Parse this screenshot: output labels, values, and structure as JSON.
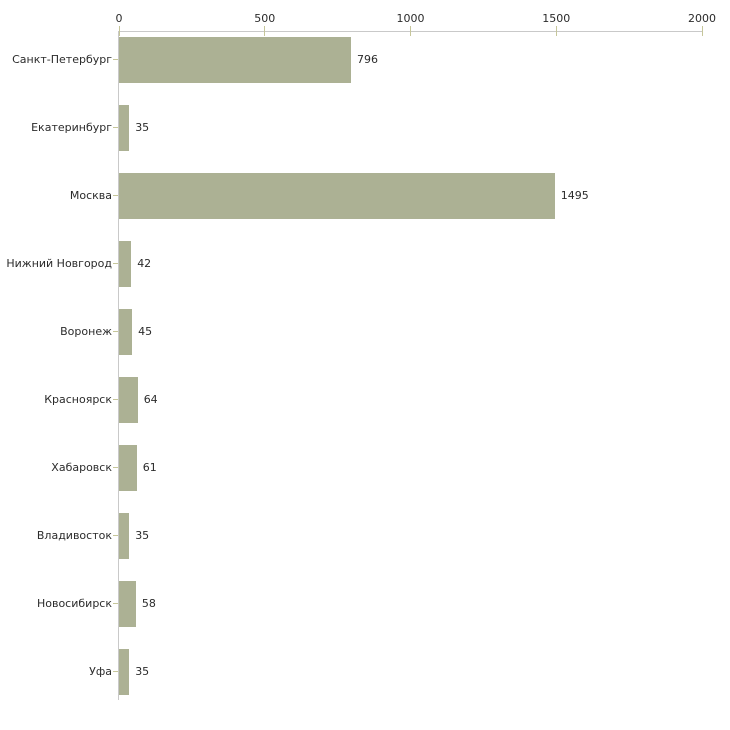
{
  "chart_data": {
    "type": "bar",
    "orientation": "horizontal",
    "title": "",
    "xlabel": "",
    "ylabel": "",
    "categories": [
      "Санкт-Петербург",
      "Екатеринбург",
      "Москва",
      "Нижний Новгород",
      "Воронеж",
      "Красноярск",
      "Хабаровск",
      "Владивосток",
      "Новосибирск",
      "Уфа"
    ],
    "values": [
      796,
      35,
      1495,
      42,
      45,
      64,
      61,
      35,
      58,
      35
    ],
    "xticks": [
      "0",
      "500",
      "1000",
      "1500",
      "2000"
    ],
    "xtick_values": [
      0,
      500,
      1000,
      1500,
      2000
    ],
    "xlim": [
      0,
      2000
    ],
    "grid": false,
    "legend": false,
    "tick_labels_position": "top",
    "colors": {
      "bar": "#acb194",
      "axis_line": "#c9c9c9",
      "tick_mark": "#c6c69a",
      "text": "#2b2b2b",
      "background": "#ffffff"
    }
  }
}
